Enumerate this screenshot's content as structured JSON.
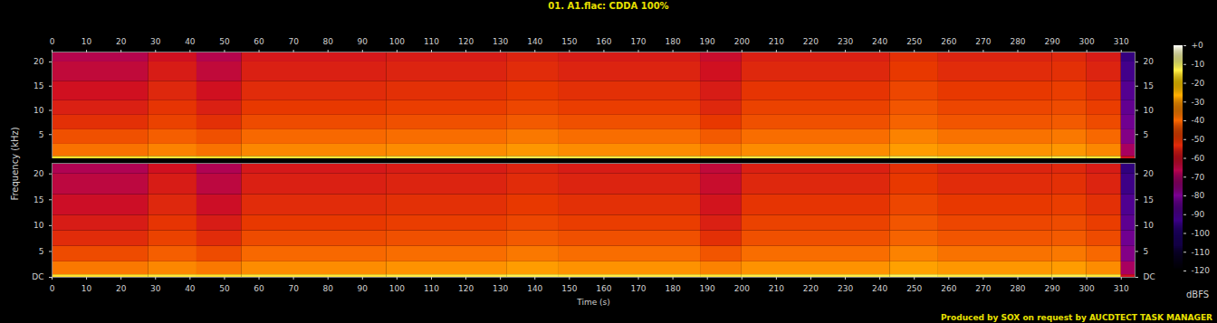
{
  "chart_data": {
    "type": "heatmap",
    "title": "01. A1.flac: CDDA 100%",
    "caption": "Produced by SOX on request by AUCDTECT TASK MANAGER",
    "xlabel": "Time (s)",
    "ylabel": "Frequency (kHz)",
    "xlim": [
      0,
      314
    ],
    "xticks": [
      0,
      10,
      20,
      30,
      40,
      50,
      60,
      70,
      80,
      90,
      100,
      110,
      120,
      130,
      140,
      150,
      160,
      170,
      180,
      190,
      200,
      210,
      220,
      230,
      240,
      250,
      260,
      270,
      280,
      290,
      300,
      310
    ],
    "ylim": [
      0,
      22.05
    ],
    "time_edges": [
      0,
      28,
      42,
      55,
      97,
      132,
      147,
      188,
      200,
      243,
      257,
      290,
      300,
      310,
      314
    ],
    "freq_edges": [
      0,
      0.5,
      3,
      6,
      9,
      12,
      16,
      20,
      22.05
    ],
    "panels": [
      {
        "yticks": [
          5,
          10,
          15,
          20
        ],
        "cells": [
          [
            -16,
            -15,
            -16,
            -15,
            -14,
            -13,
            -14,
            -15,
            -14,
            -12,
            -14,
            -13,
            -15,
            -60
          ],
          [
            -38,
            -35,
            -38,
            -34,
            -33,
            -31,
            -33,
            -36,
            -33,
            -30,
            -32,
            -31,
            -34,
            -70
          ],
          [
            -45,
            -42,
            -45,
            -40,
            -39,
            -37,
            -39,
            -43,
            -39,
            -35,
            -38,
            -37,
            -40,
            -78
          ],
          [
            -52,
            -48,
            -52,
            -46,
            -45,
            -43,
            -45,
            -50,
            -45,
            -41,
            -44,
            -43,
            -46,
            -82
          ],
          [
            -56,
            -51,
            -56,
            -50,
            -49,
            -47,
            -49,
            -54,
            -48,
            -44,
            -47,
            -46,
            -49,
            -85
          ],
          [
            -60,
            -54,
            -60,
            -53,
            -52,
            -50,
            -52,
            -57,
            -51,
            -47,
            -50,
            -49,
            -52,
            -88
          ],
          [
            -64,
            -57,
            -64,
            -56,
            -55,
            -53,
            -55,
            -60,
            -54,
            -50,
            -53,
            -52,
            -55,
            -92
          ],
          [
            -67,
            -60,
            -67,
            -58,
            -57,
            -55,
            -57,
            -62,
            -56,
            -52,
            -55,
            -54,
            -57,
            -95
          ]
        ]
      },
      {
        "yticks": [
          {
            "value": 0,
            "label": "DC"
          },
          5,
          10,
          15,
          20
        ],
        "cells": [
          [
            -16,
            -15,
            -16,
            -15,
            -14,
            -13,
            -14,
            -15,
            -14,
            -12,
            -14,
            -13,
            -15,
            -60
          ],
          [
            -37,
            -34,
            -37,
            -33,
            -32,
            -30,
            -32,
            -35,
            -32,
            -29,
            -31,
            -30,
            -33,
            -70
          ],
          [
            -46,
            -42,
            -46,
            -40,
            -39,
            -37,
            -39,
            -44,
            -39,
            -35,
            -38,
            -37,
            -40,
            -78
          ],
          [
            -53,
            -48,
            -53,
            -46,
            -45,
            -43,
            -45,
            -52,
            -45,
            -41,
            -44,
            -43,
            -46,
            -82
          ],
          [
            -57,
            -51,
            -57,
            -50,
            -49,
            -47,
            -49,
            -56,
            -48,
            -44,
            -47,
            -46,
            -49,
            -86
          ],
          [
            -61,
            -54,
            -61,
            -53,
            -52,
            -50,
            -52,
            -59,
            -51,
            -47,
            -50,
            -49,
            -52,
            -89
          ],
          [
            -65,
            -57,
            -65,
            -56,
            -55,
            -53,
            -55,
            -62,
            -54,
            -50,
            -53,
            -52,
            -55,
            -93
          ],
          [
            -68,
            -60,
            -68,
            -58,
            -57,
            -55,
            -57,
            -64,
            -56,
            -52,
            -55,
            -54,
            -57,
            -96
          ]
        ]
      }
    ],
    "colorbar": {
      "label": "dBFS",
      "range": [
        -120,
        0
      ],
      "ticks": [
        {
          "value": 0,
          "label": "+0"
        },
        -10,
        -20,
        -30,
        -40,
        -50,
        -60,
        -70,
        -80,
        -90,
        -100,
        -110,
        -120
      ]
    }
  }
}
